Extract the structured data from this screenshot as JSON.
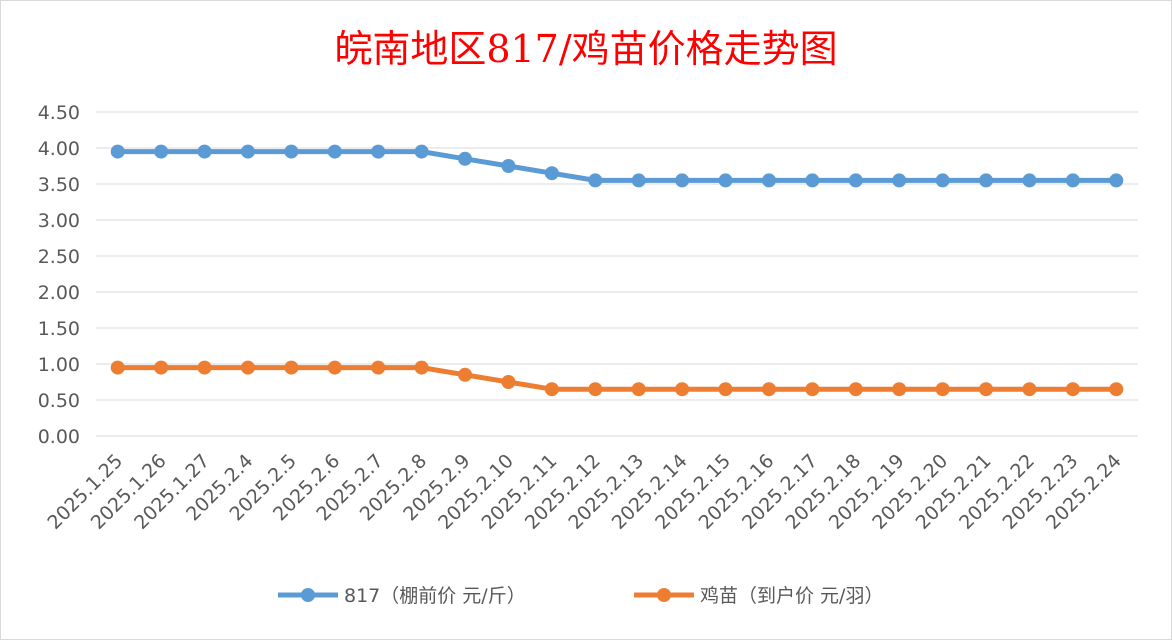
{
  "chart_data": {
    "type": "line",
    "title": "皖南地区817/鸡苗价格走势图",
    "categories": [
      "2025.1.25",
      "2025.1.26",
      "2025.1.27",
      "2025.2.4",
      "2025.2.5",
      "2025.2.6",
      "2025.2.7",
      "2025.2.8",
      "2025.2.9",
      "2025.2.10",
      "2025.2.11",
      "2025.2.12",
      "2025.2.13",
      "2025.2.14",
      "2025.2.15",
      "2025.2.16",
      "2025.2.17",
      "2025.2.18",
      "2025.2.19",
      "2025.2.20",
      "2025.2.21",
      "2025.2.22",
      "2025.2.23",
      "2025.2.24"
    ],
    "series": [
      {
        "name": "817（棚前价 元/斤）",
        "color": "#5b9bd5",
        "values": [
          3.95,
          3.95,
          3.95,
          3.95,
          3.95,
          3.95,
          3.95,
          3.95,
          3.85,
          3.75,
          3.65,
          3.55,
          3.55,
          3.55,
          3.55,
          3.55,
          3.55,
          3.55,
          3.55,
          3.55,
          3.55,
          3.55,
          3.55,
          3.55
        ]
      },
      {
        "name": "鸡苗（到户价 元/羽）",
        "color": "#ed7d31",
        "values": [
          0.95,
          0.95,
          0.95,
          0.95,
          0.95,
          0.95,
          0.95,
          0.95,
          0.85,
          0.75,
          0.65,
          0.65,
          0.65,
          0.65,
          0.65,
          0.65,
          0.65,
          0.65,
          0.65,
          0.65,
          0.65,
          0.65,
          0.65,
          0.65
        ]
      }
    ],
    "yticks": [
      "0.00",
      "0.50",
      "1.00",
      "1.50",
      "2.00",
      "2.50",
      "3.00",
      "3.50",
      "4.00",
      "4.50"
    ],
    "ylim": [
      0,
      4.5
    ],
    "grid": true,
    "legend_position": "bottom"
  }
}
